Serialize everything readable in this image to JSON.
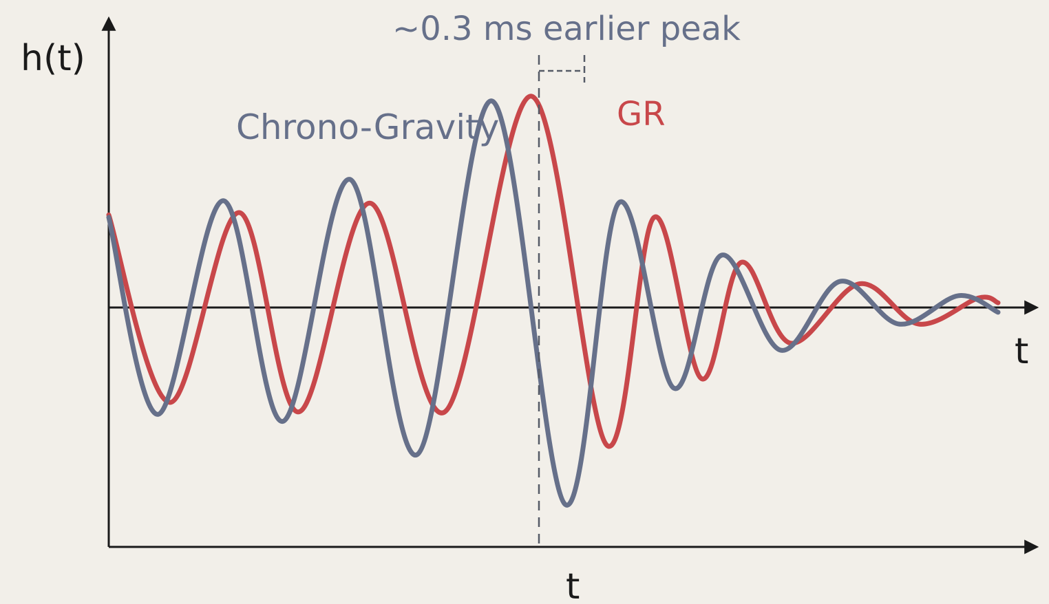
{
  "chart_data": {
    "type": "line",
    "title": "",
    "ylabel": "h(t)",
    "xlabel": "t",
    "xlabel_inner": "t",
    "annotation": "~0.3 ms earlier peak",
    "grid": false,
    "legend": "inline labels",
    "colors": {
      "background": "#f2efe9",
      "axis": "#1a1a1a",
      "chrono": "#66708a",
      "gr": "#c8474a",
      "annotation": "#66708a"
    },
    "series": [
      {
        "name": "Chrono-Gravity",
        "label": "Chrono-Gravity",
        "color": "#66708a",
        "points": [
          [
            0,
            0.38
          ],
          [
            0.025,
            -0.45
          ],
          [
            0.058,
            0.45
          ],
          [
            0.088,
            -0.48
          ],
          [
            0.122,
            0.54
          ],
          [
            0.156,
            -0.62
          ],
          [
            0.194,
            0.87
          ],
          [
            0.231,
            -0.83
          ],
          [
            0.258,
            0.44
          ],
          [
            0.286,
            -0.34
          ],
          [
            0.31,
            0.22
          ],
          [
            0.34,
            -0.18
          ],
          [
            0.37,
            0.11
          ],
          [
            0.4,
            -0.07
          ],
          [
            0.43,
            0.05
          ],
          [
            0.45,
            -0.02
          ]
        ]
      },
      {
        "name": "GR",
        "label": "GR",
        "color": "#c8474a",
        "points": [
          [
            0,
            0.39
          ],
          [
            0.031,
            -0.4
          ],
          [
            0.066,
            0.4
          ],
          [
            0.096,
            -0.44
          ],
          [
            0.132,
            0.44
          ],
          [
            0.17,
            -0.44
          ],
          [
            0.214,
            0.89
          ],
          [
            0.252,
            -0.58
          ],
          [
            0.276,
            0.38
          ],
          [
            0.3,
            -0.3
          ],
          [
            0.32,
            0.19
          ],
          [
            0.345,
            -0.15
          ],
          [
            0.38,
            0.1
          ],
          [
            0.41,
            -0.07
          ],
          [
            0.44,
            0.04
          ],
          [
            0.45,
            0.02
          ]
        ]
      }
    ]
  }
}
